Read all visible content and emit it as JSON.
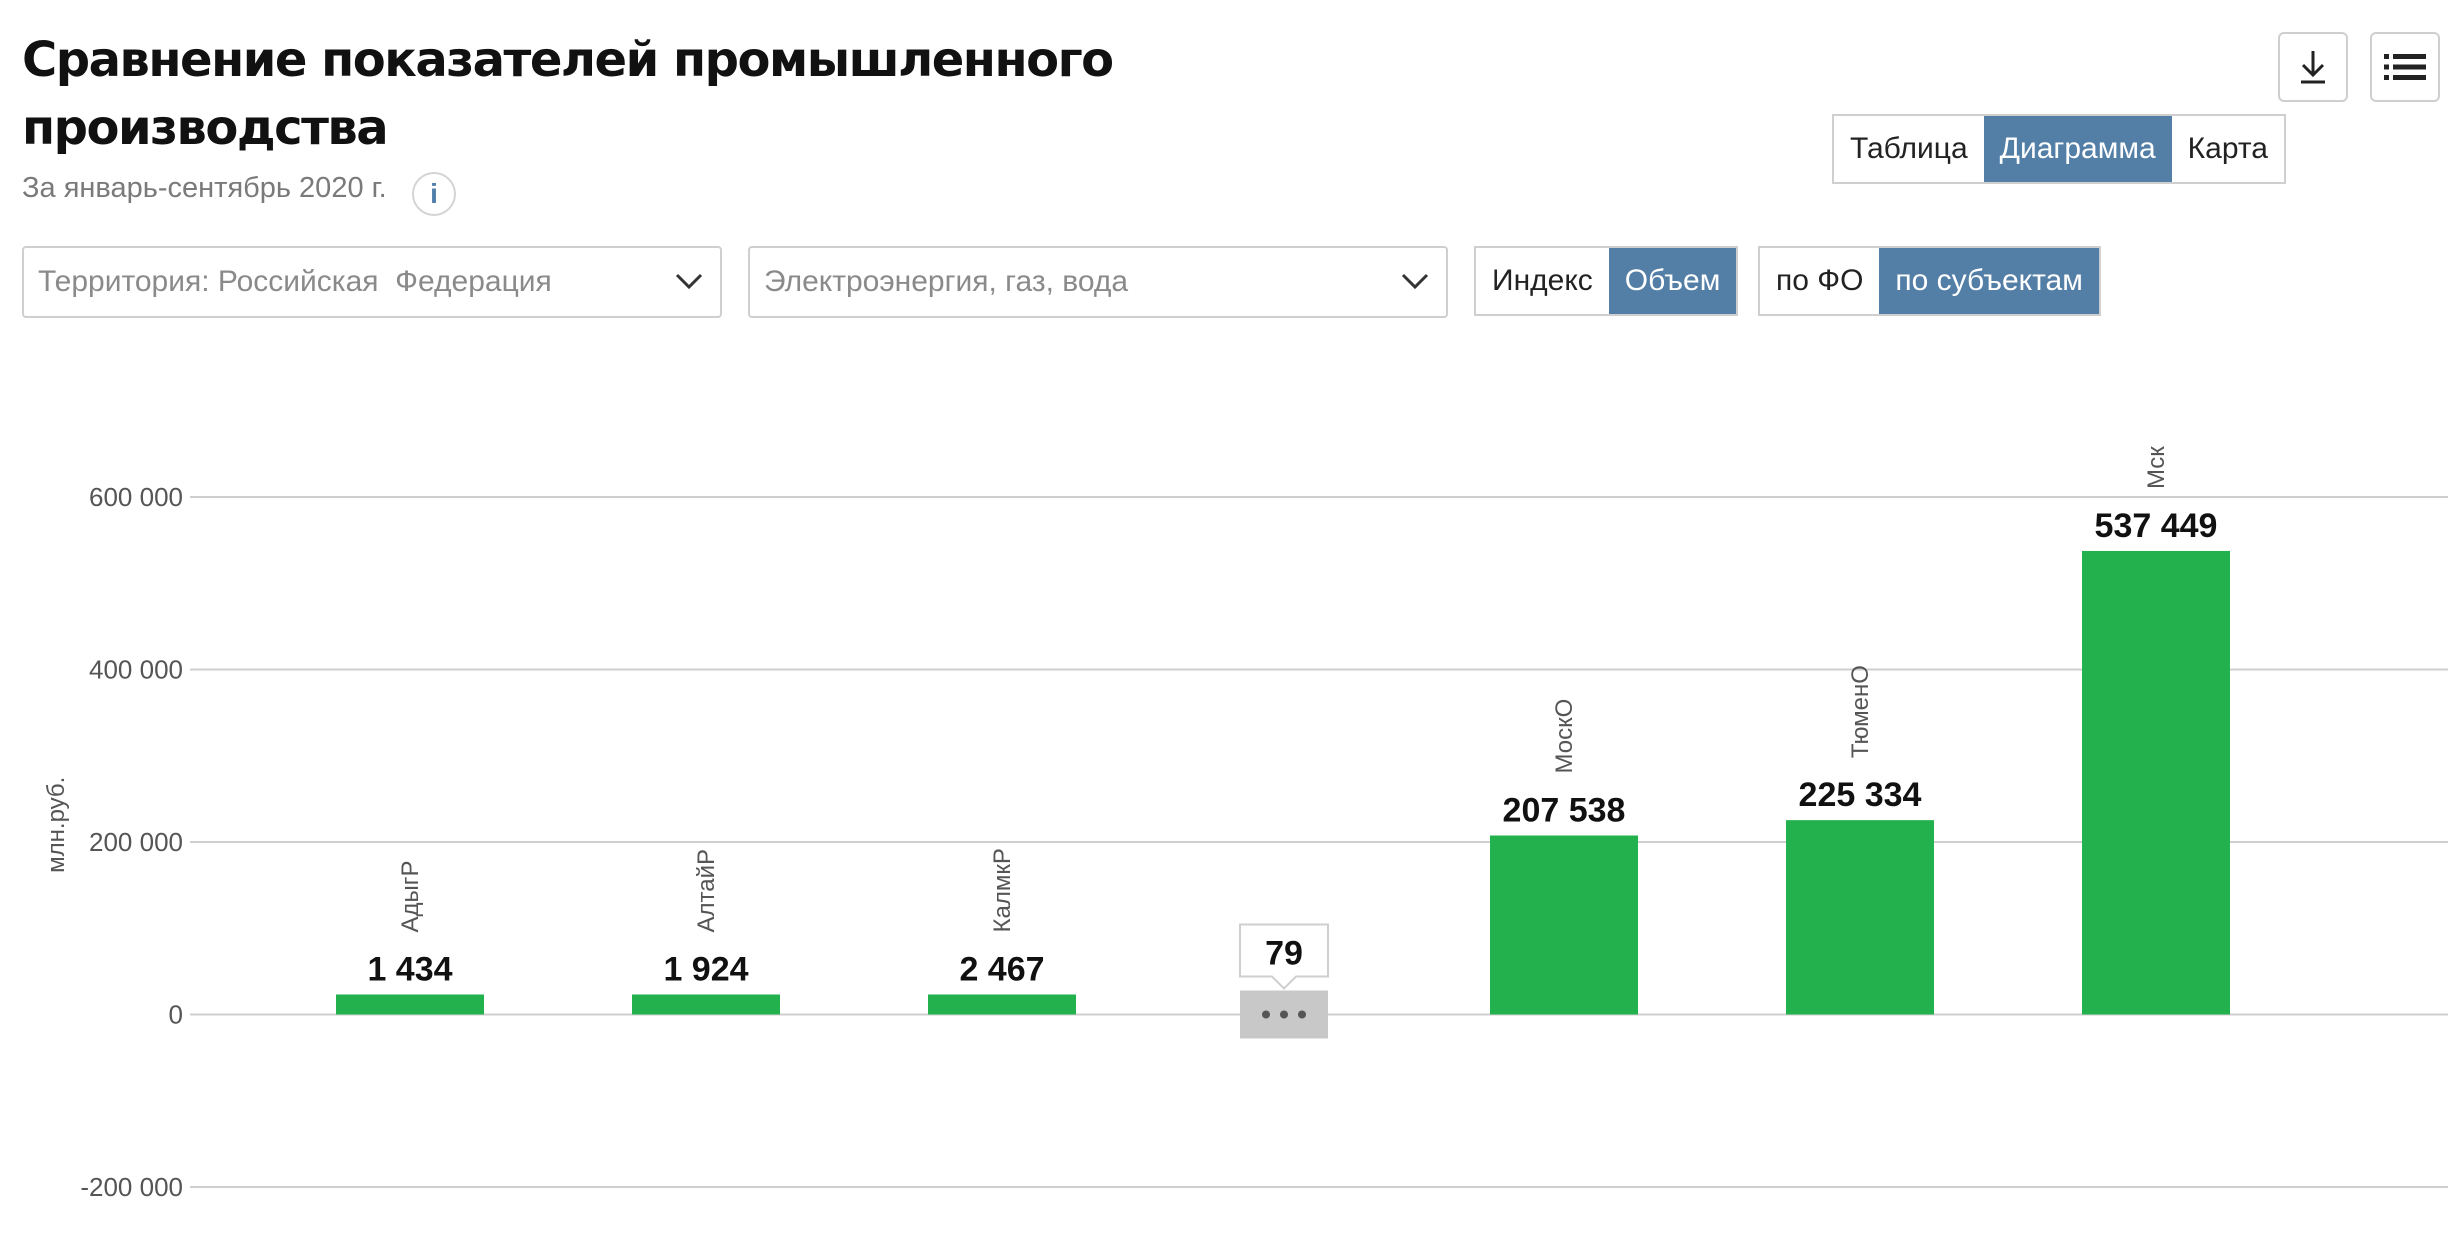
{
  "header": {
    "title": "Сравнение показателей промышленного производства",
    "subtitle": "За январь-сентябрь 2020 г.",
    "info_label": "i"
  },
  "toolbar": {
    "download_icon": "download-icon",
    "menu_icon": "list-icon"
  },
  "view_tabs": [
    {
      "label": "Таблица",
      "active": false
    },
    {
      "label": "Диаграмма",
      "active": true
    },
    {
      "label": "Карта",
      "active": false
    }
  ],
  "filters": {
    "territory": "Территория: Российская  Федерация",
    "category": "Электроэнергия, газ, вода",
    "measure": [
      {
        "label": "Индекс",
        "active": false
      },
      {
        "label": "Объем",
        "active": true
      }
    ],
    "grouping": [
      {
        "label": "по ФО",
        "active": false
      },
      {
        "label": "по субъектам",
        "active": true
      }
    ]
  },
  "colors": {
    "accent": "#537fa7",
    "bar": "#22b14c",
    "collapsed": "#c8c8c8"
  },
  "chart_data": {
    "type": "bar",
    "ylabel": "млн.руб.",
    "ylim": [
      -200000,
      600000
    ],
    "yticks": [
      600000,
      400000,
      200000,
      0,
      -200000
    ],
    "ytick_labels": [
      "600 000",
      "400 000",
      "200 000",
      "0",
      "-200 000"
    ],
    "grid": true,
    "categories": [
      "АдыгР",
      "АлтайР",
      "КалмкР",
      "…",
      "МоскО",
      "ТюменО",
      "Мск"
    ],
    "values": [
      1434,
      1924,
      2467,
      null,
      207538,
      225334,
      537449
    ],
    "value_labels": [
      "1 434",
      "1 924",
      "2 467",
      "",
      "207 538",
      "225 334",
      "537 449"
    ],
    "collapsed_group": {
      "index": 3,
      "count": 79,
      "label": "79"
    }
  }
}
